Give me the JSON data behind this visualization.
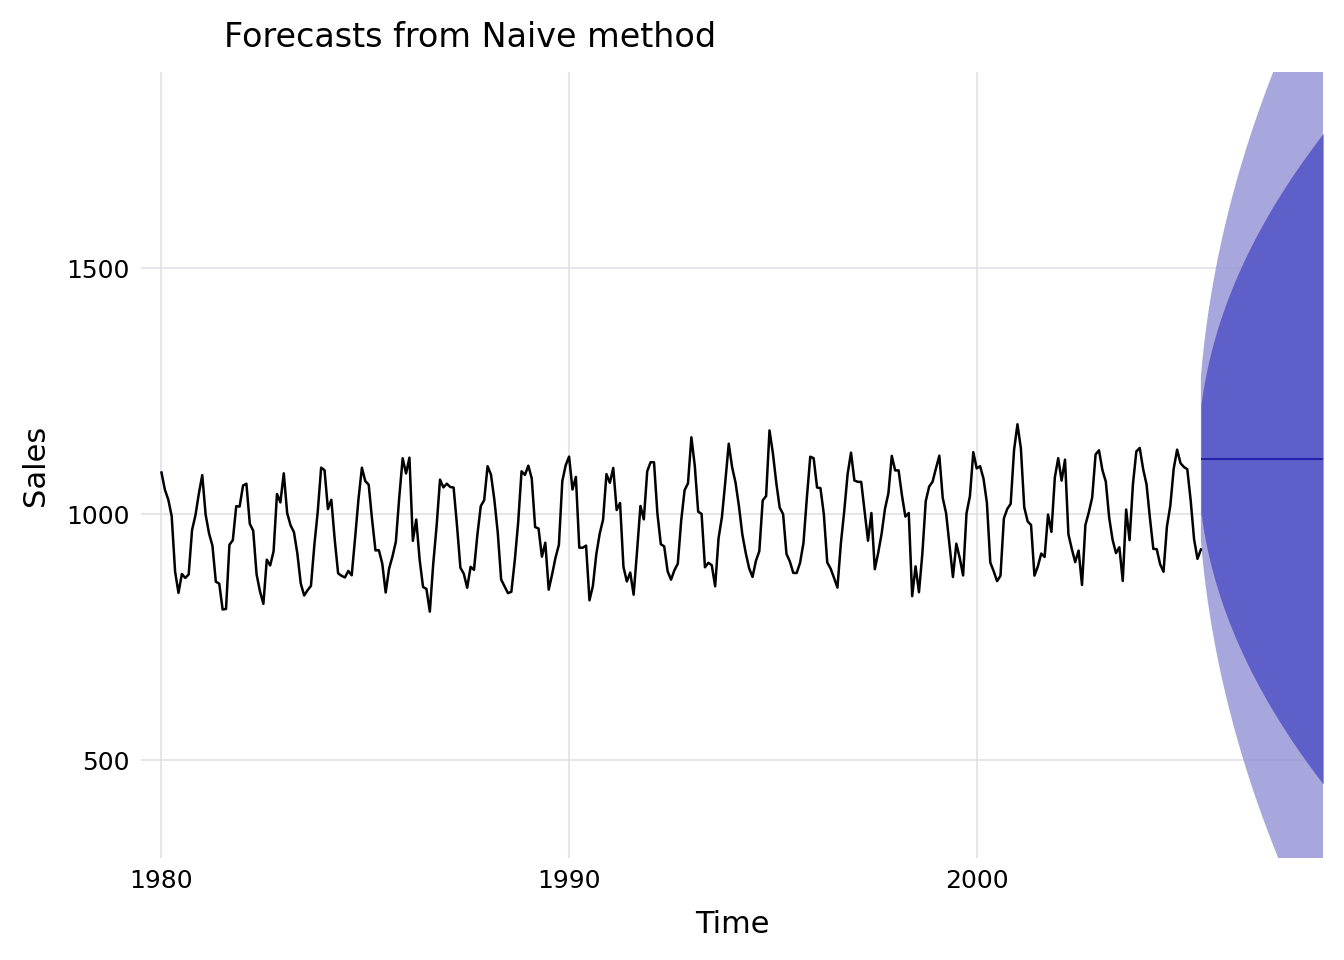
{
  "title": "Forecasts from Naive method",
  "xlabel": "Time",
  "ylabel": "Sales",
  "bg_color": "#ffffff",
  "grid_color": "#e0e0e8",
  "ci_80_color": "#5858c8",
  "ci_95_color": "#9898d8",
  "forecast_line_color": "#2222aa",
  "ts_color": "#000000",
  "ylim_lo": 300,
  "ylim_hi": 1900,
  "xlim_lo": 1979.5,
  "xlim_hi": 2008.5,
  "yticks": [
    500,
    1000,
    1500
  ],
  "xticks": [
    1980,
    1990,
    2000
  ],
  "ts_start_year": 1980,
  "forecast_start": 2005.5,
  "forecast_mean": 1113,
  "sigma": 85,
  "forecast_horizon_years": 3.0
}
